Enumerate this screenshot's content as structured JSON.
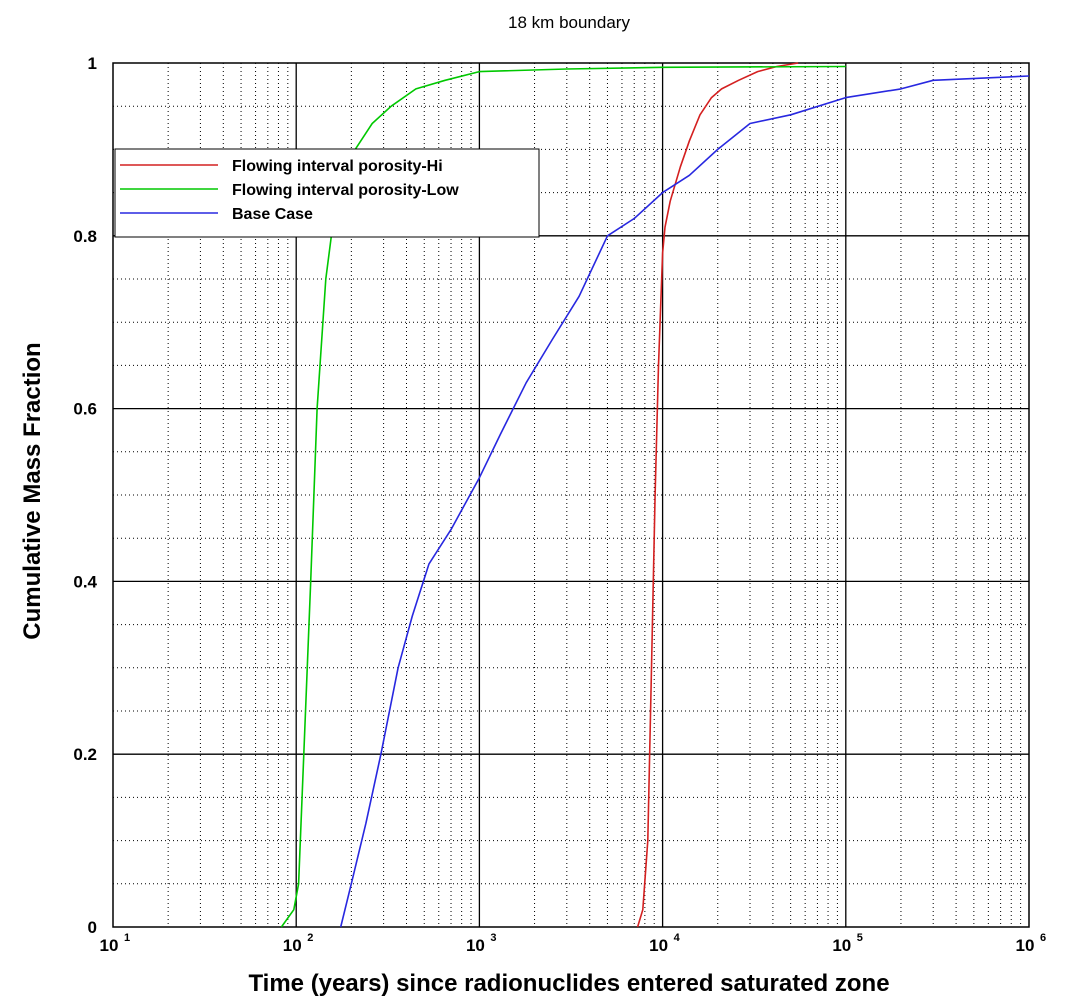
{
  "chart_data": {
    "type": "line",
    "title": "18 km boundary",
    "xlabel": "Time (years) since radionuclides entered saturated zone",
    "ylabel": "Cumulative Mass Fraction",
    "x_scale": "log",
    "xlim": [
      10,
      1000000
    ],
    "ylim": [
      0,
      1
    ],
    "x_ticks": [
      {
        "base": "10",
        "exp": "1"
      },
      {
        "base": "10",
        "exp": "2"
      },
      {
        "base": "10",
        "exp": "3"
      },
      {
        "base": "10",
        "exp": "4"
      },
      {
        "base": "10",
        "exp": "5"
      },
      {
        "base": "10",
        "exp": "6"
      }
    ],
    "y_ticks": [
      "0",
      "0.2",
      "0.4",
      "0.6",
      "0.8",
      "1"
    ],
    "grid": true,
    "legend_position": "upper-left",
    "series": [
      {
        "name": "Flowing interval porosity-Hi",
        "color": "#d42020",
        "points": [
          [
            7300,
            0
          ],
          [
            7800,
            0.02
          ],
          [
            8300,
            0.1
          ],
          [
            8700,
            0.3
          ],
          [
            9100,
            0.5
          ],
          [
            9500,
            0.65
          ],
          [
            10000,
            0.78
          ],
          [
            10300,
            0.81
          ],
          [
            11000,
            0.84
          ],
          [
            12500,
            0.88
          ],
          [
            14000,
            0.91
          ],
          [
            16000,
            0.94
          ],
          [
            18500,
            0.96
          ],
          [
            21000,
            0.97
          ],
          [
            26000,
            0.98
          ],
          [
            33000,
            0.99
          ],
          [
            42000,
            0.996
          ],
          [
            55000,
            1.0
          ]
        ]
      },
      {
        "name": "Flowing interval porosity-Low",
        "color": "#00c800",
        "points": [
          [
            83,
            0
          ],
          [
            97,
            0.02
          ],
          [
            103,
            0.05
          ],
          [
            110,
            0.2
          ],
          [
            120,
            0.4
          ],
          [
            130,
            0.6
          ],
          [
            145,
            0.75
          ],
          [
            160,
            0.82
          ],
          [
            180,
            0.86
          ],
          [
            210,
            0.9
          ],
          [
            260,
            0.93
          ],
          [
            330,
            0.95
          ],
          [
            450,
            0.97
          ],
          [
            650,
            0.98
          ],
          [
            1000,
            0.99
          ],
          [
            3000,
            0.993
          ],
          [
            10000,
            0.995
          ],
          [
            100000,
            0.996
          ]
        ]
      },
      {
        "name": "Base Case",
        "color": "#2828e0",
        "points": [
          [
            175,
            0
          ],
          [
            200,
            0.05
          ],
          [
            240,
            0.12
          ],
          [
            290,
            0.2
          ],
          [
            360,
            0.3
          ],
          [
            430,
            0.36
          ],
          [
            530,
            0.42
          ],
          [
            700,
            0.46
          ],
          [
            1000,
            0.52
          ],
          [
            1300,
            0.57
          ],
          [
            1800,
            0.63
          ],
          [
            2500,
            0.68
          ],
          [
            3500,
            0.73
          ],
          [
            5000,
            0.8
          ],
          [
            7000,
            0.82
          ],
          [
            10000,
            0.85
          ],
          [
            14000,
            0.87
          ],
          [
            20000,
            0.9
          ],
          [
            30000,
            0.93
          ],
          [
            50000,
            0.94
          ],
          [
            100000,
            0.96
          ],
          [
            200000,
            0.97
          ],
          [
            300000,
            0.98
          ],
          [
            1000000,
            0.985
          ]
        ]
      }
    ]
  }
}
